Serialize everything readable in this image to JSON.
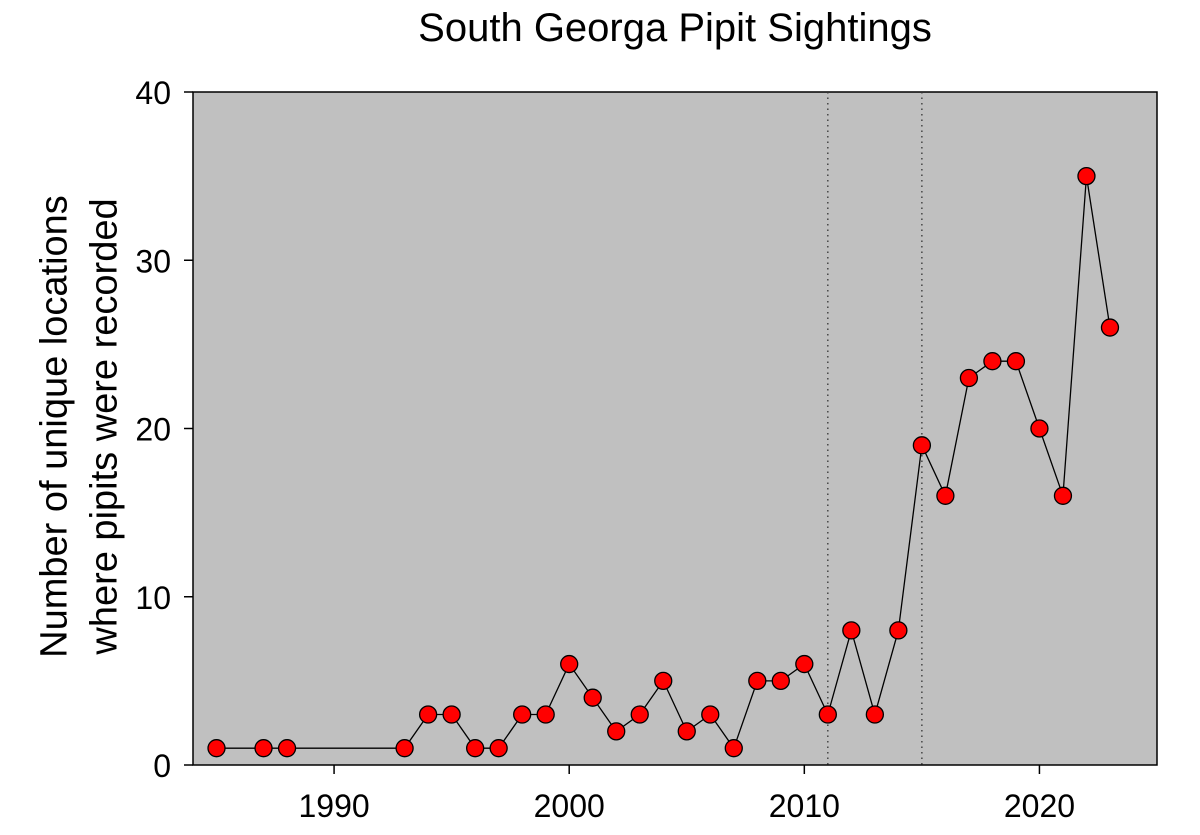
{
  "chart_data": {
    "type": "line",
    "title": "South Georga Pipit Sightings",
    "ylabel_line1": "Number of unique locations",
    "ylabel_line2": "where pipits were recorded",
    "xlabel": "",
    "xlim": [
      1984,
      2025
    ],
    "ylim": [
      0,
      40
    ],
    "xticks": [
      1990,
      2000,
      2010,
      2020
    ],
    "yticks": [
      0,
      10,
      20,
      30,
      40
    ],
    "grid": false,
    "background_color": "#c0c0c0",
    "marker_color": "#ff0000",
    "line_color": "#000000",
    "reference_lines_x": [
      2011,
      2015
    ],
    "x": [
      1985,
      1987,
      1988,
      1993,
      1994,
      1995,
      1996,
      1997,
      1998,
      1999,
      2000,
      2001,
      2002,
      2003,
      2004,
      2005,
      2006,
      2007,
      2008,
      2009,
      2010,
      2011,
      2012,
      2013,
      2014,
      2015,
      2016,
      2017,
      2018,
      2019,
      2020,
      2021,
      2022,
      2023
    ],
    "y": [
      1,
      1,
      1,
      1,
      3,
      3,
      1,
      1,
      3,
      3,
      6,
      4,
      2,
      3,
      5,
      2,
      3,
      1,
      5,
      5,
      6,
      3,
      8,
      3,
      8,
      19,
      16,
      23,
      24,
      24,
      20,
      16,
      35,
      26
    ]
  }
}
